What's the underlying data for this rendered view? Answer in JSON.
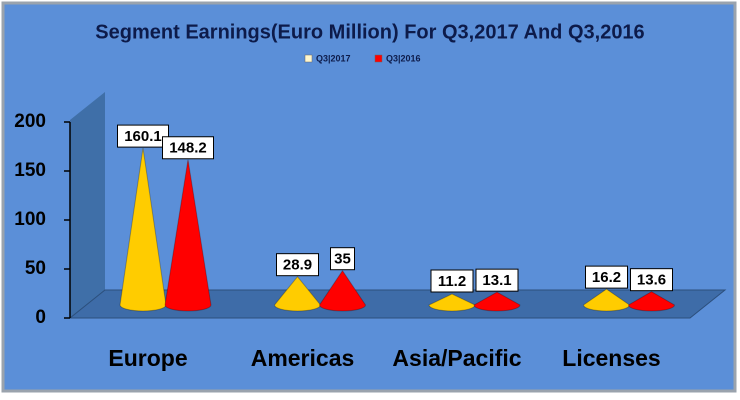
{
  "chart_data": {
    "type": "bar",
    "title": "Segment Earnings(Euro Million) For Q3,2017 And Q3,2016",
    "categories": [
      "Europe",
      "Americas",
      "Asia/Pacific",
      "Licenses"
    ],
    "series": [
      {
        "name": "Q3|2017",
        "color": "#ffcc00",
        "values": [
          160.1,
          28.9,
          11.2,
          16.2
        ]
      },
      {
        "name": "Q3|2016",
        "color": "#ff0000",
        "values": [
          148.2,
          35,
          13.1,
          13.6
        ]
      }
    ],
    "ylim": [
      0,
      200
    ],
    "yticks": [
      0,
      50,
      100,
      150,
      200
    ],
    "legend": "top"
  }
}
